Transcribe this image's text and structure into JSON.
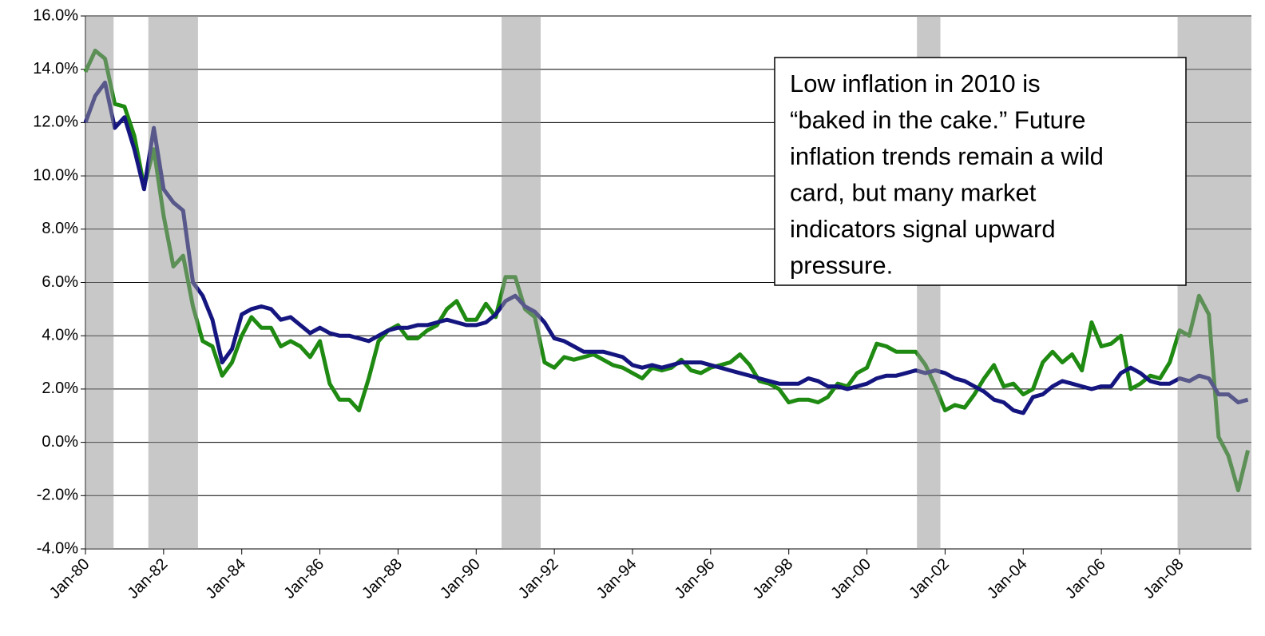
{
  "chart_data": {
    "type": "line",
    "x": [
      1980,
      1980.25,
      1980.5,
      1980.75,
      1981,
      1981.25,
      1981.5,
      1981.75,
      1982,
      1982.25,
      1982.5,
      1982.75,
      1983,
      1983.25,
      1983.5,
      1983.75,
      1984,
      1984.25,
      1984.5,
      1984.75,
      1985,
      1985.25,
      1985.5,
      1985.75,
      1986,
      1986.25,
      1986.5,
      1986.75,
      1987,
      1987.25,
      1987.5,
      1987.75,
      1988,
      1988.25,
      1988.5,
      1988.75,
      1989,
      1989.25,
      1989.5,
      1989.75,
      1990,
      1990.25,
      1990.5,
      1990.75,
      1991,
      1991.25,
      1991.5,
      1991.75,
      1992,
      1992.25,
      1992.5,
      1992.75,
      1993,
      1993.25,
      1993.5,
      1993.75,
      1994,
      1994.25,
      1994.5,
      1994.75,
      1995,
      1995.25,
      1995.5,
      1995.75,
      1996,
      1996.25,
      1996.5,
      1996.75,
      1997,
      1997.25,
      1997.5,
      1997.75,
      1998,
      1998.25,
      1998.5,
      1998.75,
      1999,
      1999.25,
      1999.5,
      1999.75,
      2000,
      2000.25,
      2000.5,
      2000.75,
      2001,
      2001.25,
      2001.5,
      2001.75,
      2002,
      2002.25,
      2002.5,
      2002.75,
      2003,
      2003.25,
      2003.5,
      2003.75,
      2004,
      2004.25,
      2004.5,
      2004.75,
      2005,
      2005.25,
      2005.5,
      2005.75,
      2006,
      2006.25,
      2006.5,
      2006.75,
      2007,
      2007.25,
      2007.5,
      2007.75,
      2008,
      2008.25,
      2008.5,
      2008.75,
      2009,
      2009.25,
      2009.5,
      2009.75
    ],
    "series": [
      {
        "color": "#1f8a12",
        "values": [
          13.9,
          14.7,
          14.4,
          12.7,
          12.6,
          11.5,
          9.6,
          11.0,
          8.5,
          6.6,
          7.0,
          5.1,
          3.8,
          3.6,
          2.5,
          3.0,
          4.0,
          4.7,
          4.3,
          4.3,
          3.6,
          3.8,
          3.6,
          3.2,
          3.8,
          2.2,
          1.6,
          1.6,
          1.2,
          2.4,
          3.8,
          4.2,
          4.4,
          3.9,
          3.9,
          4.2,
          4.4,
          5.0,
          5.3,
          4.6,
          4.6,
          5.2,
          4.7,
          6.2,
          6.2,
          5.0,
          4.7,
          3.0,
          2.8,
          3.2,
          3.1,
          3.2,
          3.3,
          3.1,
          2.9,
          2.8,
          2.6,
          2.4,
          2.8,
          2.7,
          2.8,
          3.1,
          2.7,
          2.6,
          2.8,
          2.9,
          3.0,
          3.3,
          2.9,
          2.3,
          2.2,
          2.0,
          1.5,
          1.6,
          1.6,
          1.5,
          1.7,
          2.2,
          2.1,
          2.6,
          2.8,
          3.7,
          3.6,
          3.4,
          3.4,
          3.4,
          2.9,
          2.1,
          1.2,
          1.4,
          1.3,
          1.8,
          2.4,
          2.9,
          2.1,
          2.2,
          1.8,
          2.0,
          3.0,
          3.4,
          3.0,
          3.3,
          2.7,
          4.5,
          3.6,
          3.7,
          4.0,
          2.0,
          2.2,
          2.5,
          2.4,
          3.0,
          4.2,
          4.0,
          5.5,
          4.8,
          0.2,
          -0.5,
          -1.8,
          -0.3
        ]
      },
      {
        "color": "#151580",
        "values": [
          12.0,
          13.0,
          13.5,
          11.8,
          12.2,
          11.0,
          9.5,
          11.8,
          9.5,
          9.0,
          8.7,
          6.0,
          5.5,
          4.6,
          3.0,
          3.5,
          4.8,
          5.0,
          5.1,
          5.0,
          4.6,
          4.7,
          4.4,
          4.1,
          4.3,
          4.1,
          4.0,
          4.0,
          3.9,
          3.8,
          4.0,
          4.2,
          4.3,
          4.3,
          4.4,
          4.4,
          4.5,
          4.6,
          4.5,
          4.4,
          4.4,
          4.5,
          4.8,
          5.3,
          5.5,
          5.1,
          4.9,
          4.5,
          3.9,
          3.8,
          3.6,
          3.4,
          3.4,
          3.4,
          3.3,
          3.2,
          2.9,
          2.8,
          2.9,
          2.8,
          2.9,
          3.0,
          3.0,
          3.0,
          2.9,
          2.8,
          2.7,
          2.6,
          2.5,
          2.4,
          2.3,
          2.2,
          2.2,
          2.2,
          2.4,
          2.3,
          2.1,
          2.1,
          2.0,
          2.1,
          2.2,
          2.4,
          2.5,
          2.5,
          2.6,
          2.7,
          2.6,
          2.7,
          2.6,
          2.4,
          2.3,
          2.1,
          1.9,
          1.6,
          1.5,
          1.2,
          1.1,
          1.7,
          1.8,
          2.1,
          2.3,
          2.2,
          2.1,
          2.0,
          2.1,
          2.1,
          2.6,
          2.8,
          2.6,
          2.3,
          2.2,
          2.2,
          2.4,
          2.3,
          2.5,
          2.4,
          1.8,
          1.8,
          1.5,
          1.6
        ]
      }
    ],
    "shaded_periods": [
      [
        1980.0,
        1980.72
      ],
      [
        1981.61,
        1982.88
      ],
      [
        1990.65,
        1991.65
      ],
      [
        2001.28,
        2001.88
      ],
      [
        2007.95,
        2009.84
      ]
    ],
    "xlim": [
      1980,
      2009.84
    ],
    "xticks": [
      {
        "value": 1980,
        "label": "Jan-80"
      },
      {
        "value": 1982,
        "label": "Jan-82"
      },
      {
        "value": 1984,
        "label": "Jan-84"
      },
      {
        "value": 1986,
        "label": "Jan-86"
      },
      {
        "value": 1988,
        "label": "Jan-88"
      },
      {
        "value": 1990,
        "label": "Jan-90"
      },
      {
        "value": 1992,
        "label": "Jan-92"
      },
      {
        "value": 1994,
        "label": "Jan-94"
      },
      {
        "value": 1996,
        "label": "Jan-96"
      },
      {
        "value": 1998,
        "label": "Jan-98"
      },
      {
        "value": 2000,
        "label": "Jan-00"
      },
      {
        "value": 2002,
        "label": "Jan-02"
      },
      {
        "value": 2004,
        "label": "Jan-04"
      },
      {
        "value": 2006,
        "label": "Jan-06"
      },
      {
        "value": 2008,
        "label": "Jan-08"
      }
    ],
    "ylim": [
      -4,
      16
    ],
    "yticks": [
      {
        "value": 16,
        "label": "16.0%"
      },
      {
        "value": 14,
        "label": "14.0%"
      },
      {
        "value": 12,
        "label": "12.0%"
      },
      {
        "value": 10,
        "label": "10.0%"
      },
      {
        "value": 8,
        "label": "8.0%"
      },
      {
        "value": 6,
        "label": "6.0%"
      },
      {
        "value": 4,
        "label": "4.0%"
      },
      {
        "value": 2,
        "label": "2.0%"
      },
      {
        "value": 0,
        "label": "0.0%"
      },
      {
        "value": -2,
        "label": "-2.0%"
      },
      {
        "value": -4,
        "label": "-4.0%"
      }
    ],
    "grid": true,
    "annotation": [
      "Low inflation in 2010 is",
      "“baked in the cake.”  Future",
      "inflation trends remain a wild",
      "card, but many market",
      "indicators signal upward",
      "pressure."
    ]
  }
}
